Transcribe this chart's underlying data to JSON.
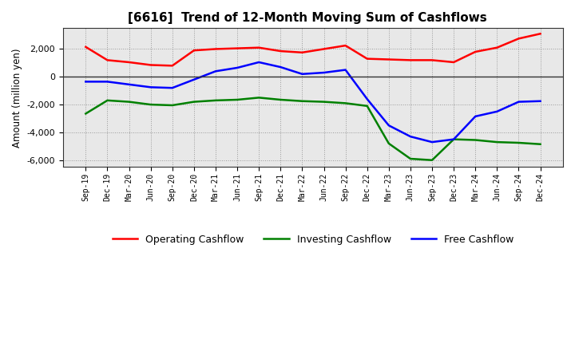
{
  "title": "[6616]  Trend of 12-Month Moving Sum of Cashflows",
  "ylabel": "Amount (million yen)",
  "x_labels": [
    "Sep-19",
    "Dec-19",
    "Mar-20",
    "Jun-20",
    "Sep-20",
    "Dec-20",
    "Mar-21",
    "Jun-21",
    "Sep-21",
    "Dec-21",
    "Mar-22",
    "Jun-22",
    "Sep-22",
    "Dec-22",
    "Mar-23",
    "Jun-23",
    "Sep-23",
    "Dec-23",
    "Mar-24",
    "Jun-24",
    "Sep-24",
    "Dec-24"
  ],
  "operating": [
    2150,
    1200,
    1050,
    850,
    800,
    1900,
    2000,
    2050,
    2100,
    1850,
    1750,
    2000,
    2250,
    1300,
    1250,
    1200,
    1200,
    1050,
    1800,
    2100,
    2750,
    3100
  ],
  "investing": [
    -2650,
    -1700,
    -1800,
    -2000,
    -2050,
    -1800,
    -1700,
    -1650,
    -1500,
    -1650,
    -1750,
    -1800,
    -1900,
    -2100,
    -4800,
    -5900,
    -6000,
    -4500,
    -4550,
    -4700,
    -4750,
    -4850
  ],
  "free": [
    -350,
    -350,
    -550,
    -750,
    -800,
    -200,
    400,
    650,
    1050,
    700,
    200,
    300,
    500,
    -1600,
    -3500,
    -4300,
    -4700,
    -4500,
    -2850,
    -2500,
    -1800,
    -1750
  ],
  "operating_color": "#ff0000",
  "investing_color": "#008000",
  "free_color": "#0000ff",
  "ylim": [
    -6500,
    3500
  ],
  "yticks": [
    -6000,
    -4000,
    -2000,
    0,
    2000
  ],
  "background_color": "#ffffff",
  "plot_bg_color": "#e8e8e8",
  "grid_color": "#999999",
  "zero_line_color": "#333333",
  "legend_labels": [
    "Operating Cashflow",
    "Investing Cashflow",
    "Free Cashflow"
  ]
}
